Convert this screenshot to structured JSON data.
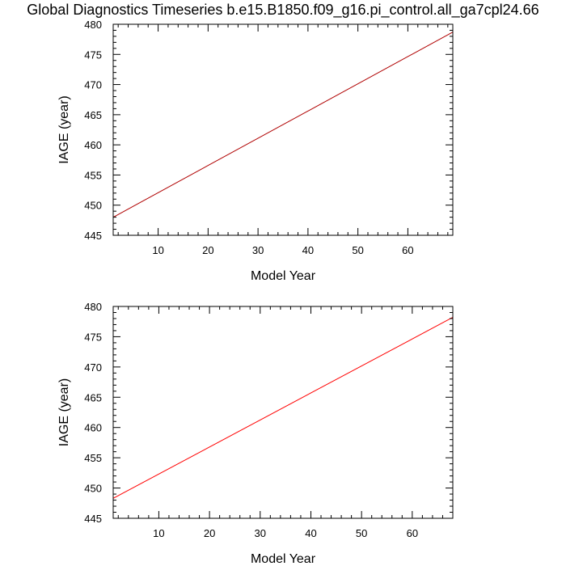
{
  "title": "Global Diagnostics Timeseries b.e15.B1850.f09_g16.pi_control.all_ga7cpl24.66",
  "chart_data": [
    {
      "type": "line",
      "xlabel": "Model Year",
      "ylabel": "IAGE (year)",
      "xlim": [
        1,
        69
      ],
      "ylim": [
        445,
        480
      ],
      "x_ticks": [
        10,
        20,
        30,
        40,
        50,
        60
      ],
      "y_ticks": [
        445,
        450,
        455,
        460,
        465,
        470,
        475,
        480
      ],
      "series": [
        {
          "color": "#b00000",
          "x": [
            1,
            69
          ],
          "y": [
            448.0,
            478.7
          ]
        }
      ]
    },
    {
      "type": "line",
      "xlabel": "Model Year",
      "ylabel": "IAGE (year)",
      "xlim": [
        1,
        68
      ],
      "ylim": [
        445,
        480
      ],
      "x_ticks": [
        10,
        20,
        30,
        40,
        50,
        60
      ],
      "y_ticks": [
        445,
        450,
        455,
        460,
        465,
        470,
        475,
        480
      ],
      "series": [
        {
          "color": "#ff0000",
          "x": [
            1,
            68
          ],
          "y": [
            448.3,
            478.2
          ]
        }
      ]
    }
  ]
}
